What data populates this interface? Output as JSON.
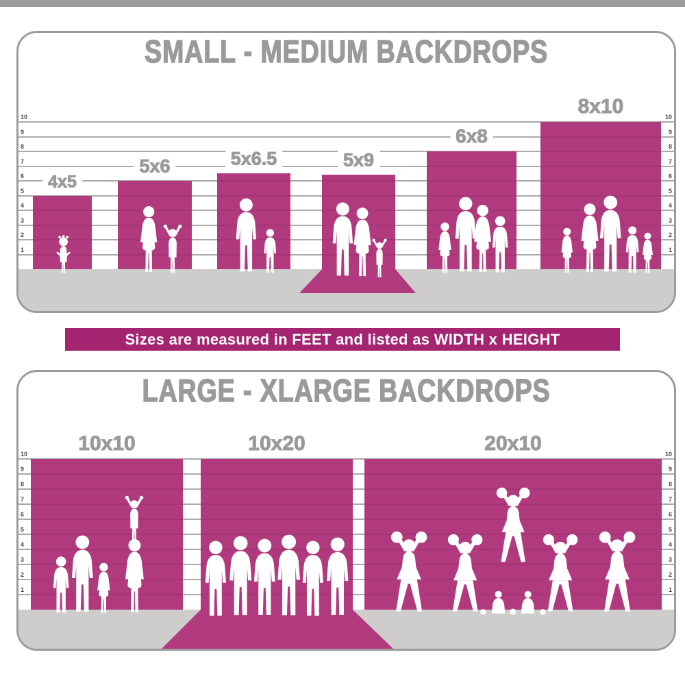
{
  "colors": {
    "backdrop_magenta": "#b13a7e",
    "banner_magenta": "#a42471",
    "title_gray": "#9a9a9a",
    "floor_gray": "#cecdcb",
    "ruler_line_gray": "#8d8d8d",
    "panel_border_gray": "#9b9b9b"
  },
  "top_chart": {
    "title": "SMALL - MEDIUM BACKDROPS",
    "ruler": {
      "unit": "feet",
      "ticks": [
        "10",
        "9",
        "8",
        "7",
        "6",
        "5",
        "4",
        "3",
        "2",
        "1"
      ]
    },
    "backdrops": [
      {
        "label": "4x5",
        "width_ft": 4,
        "height_ft": 5,
        "drawn_height_ft": 5,
        "floor_sweep": false,
        "figures": [
          {
            "type": "toddler",
            "height_ft": 2.7,
            "x": 0.52
          }
        ]
      },
      {
        "label": "5x6",
        "width_ft": 5,
        "height_ft": 6,
        "drawn_height_ft": 6,
        "floor_sweep": false,
        "figures": [
          {
            "type": "woman",
            "height_ft": 4.7,
            "x": 0.42
          },
          {
            "type": "child-arms-up",
            "height_ft": 3.5,
            "x": 0.74
          }
        ]
      },
      {
        "label": "5x6.5",
        "width_ft": 5,
        "height_ft": 6.5,
        "drawn_height_ft": 6.5,
        "floor_sweep": false,
        "figures": [
          {
            "type": "man",
            "height_ft": 5.2,
            "x": 0.4
          },
          {
            "type": "boy",
            "height_ft": 3.1,
            "x": 0.72
          }
        ]
      },
      {
        "label": "5x9",
        "width_ft": 5,
        "height_ft": 9,
        "drawn_height_ft": 6.4,
        "floor_sweep": true,
        "figures": [
          {
            "type": "man",
            "height_ft": 5.2,
            "x": 0.28
          },
          {
            "type": "woman",
            "height_ft": 4.9,
            "x": 0.55
          },
          {
            "type": "child-arms-up",
            "height_ft": 2.8,
            "x": 0.79
          }
        ]
      },
      {
        "label": "6x8",
        "width_ft": 6,
        "height_ft": 8,
        "drawn_height_ft": 8,
        "floor_sweep": false,
        "figures": [
          {
            "type": "girl",
            "height_ft": 3.6,
            "x": 0.2
          },
          {
            "type": "man",
            "height_ft": 5.3,
            "x": 0.43
          },
          {
            "type": "woman",
            "height_ft": 4.8,
            "x": 0.62
          },
          {
            "type": "boy",
            "height_ft": 4.0,
            "x": 0.82
          }
        ]
      },
      {
        "label": "8x10",
        "width_ft": 8,
        "height_ft": 10,
        "drawn_height_ft": 10,
        "floor_sweep": false,
        "figures": [
          {
            "type": "girl",
            "height_ft": 3.2,
            "x": 0.22
          },
          {
            "type": "woman",
            "height_ft": 4.9,
            "x": 0.41
          },
          {
            "type": "man",
            "height_ft": 5.4,
            "x": 0.58
          },
          {
            "type": "boy",
            "height_ft": 3.3,
            "x": 0.76
          },
          {
            "type": "girl",
            "height_ft": 2.9,
            "x": 0.89
          }
        ]
      }
    ]
  },
  "banner": {
    "text": "Sizes are measured in FEET and listed as WIDTH x HEIGHT"
  },
  "bottom_chart": {
    "title": "LARGE - XLARGE BACKDROPS",
    "ruler": {
      "unit": "feet",
      "ticks": [
        "10",
        "9",
        "8",
        "7",
        "6",
        "5",
        "4",
        "3",
        "2",
        "1"
      ]
    },
    "backdrops": [
      {
        "label": "10x10",
        "width_ft": 10,
        "height_ft": 10,
        "drawn_height_ft": 10,
        "floor_sweep": false,
        "figures": [
          {
            "type": "boy",
            "height_ft": 3.9,
            "x": 0.2
          },
          {
            "type": "man",
            "height_ft": 5.3,
            "x": 0.34
          },
          {
            "type": "girl",
            "height_ft": 3.5,
            "x": 0.48
          },
          {
            "type": "woman",
            "height_ft": 5.1,
            "x": 0.68
          },
          {
            "type": "child-arms-up",
            "height_ft": 3.4,
            "x": 0.68,
            "lift_ft": 4.6
          }
        ]
      },
      {
        "label": "10x20",
        "width_ft": 10,
        "height_ft": 20,
        "drawn_height_ft": 10,
        "floor_sweep": true,
        "figures": [
          {
            "type": "man",
            "height_ft": 5.2,
            "x": 0.1
          },
          {
            "type": "man",
            "height_ft": 5.5,
            "x": 0.26
          },
          {
            "type": "man",
            "height_ft": 5.3,
            "x": 0.42
          },
          {
            "type": "man",
            "height_ft": 5.6,
            "x": 0.58
          },
          {
            "type": "man",
            "height_ft": 5.2,
            "x": 0.74
          },
          {
            "type": "man",
            "height_ft": 5.4,
            "x": 0.9
          }
        ]
      },
      {
        "label": "20x10",
        "width_ft": 20,
        "height_ft": 10,
        "drawn_height_ft": 10,
        "floor_sweep": false,
        "figures": [
          {
            "type": "cheerleader",
            "height_ft": 5.6,
            "x": 0.15
          },
          {
            "type": "cheerleader",
            "height_ft": 5.4,
            "x": 0.34
          },
          {
            "type": "cheerleader",
            "height_ft": 5.2,
            "x": 0.5,
            "lift_ft": 3.3
          },
          {
            "type": "cheerleader",
            "height_ft": 5.4,
            "x": 0.66
          },
          {
            "type": "cheerleader",
            "height_ft": 5.6,
            "x": 0.85
          },
          {
            "type": "kneeling",
            "height_ft": 2.4,
            "x": 0.45
          },
          {
            "type": "kneeling",
            "height_ft": 2.4,
            "x": 0.55
          },
          {
            "type": "pom-pom",
            "height_ft": 1.0,
            "x": 0.4
          },
          {
            "type": "pom-pom",
            "height_ft": 1.1,
            "x": 0.5
          },
          {
            "type": "pom-pom",
            "height_ft": 1.0,
            "x": 0.6
          }
        ]
      }
    ]
  },
  "chart_data": [
    {
      "type": "bar",
      "title": "SMALL - MEDIUM BACKDROPS",
      "categories": [
        "4x5",
        "5x6",
        "5x6.5",
        "5x9",
        "6x8",
        "8x10"
      ],
      "series": [
        {
          "name": "width_ft",
          "values": [
            4,
            5,
            5,
            5,
            6,
            8
          ]
        },
        {
          "name": "height_ft",
          "values": [
            5,
            6,
            6.5,
            9,
            8,
            10
          ]
        }
      ],
      "xlabel": "",
      "ylabel": "feet",
      "ylim": [
        0,
        10
      ],
      "grid": true,
      "note": "5x9 drawn with a floor sweep; vertical portion ~6.4 ft"
    },
    {
      "type": "bar",
      "title": "LARGE - XLARGE BACKDROPS",
      "categories": [
        "10x10",
        "10x20",
        "20x10"
      ],
      "series": [
        {
          "name": "width_ft",
          "values": [
            10,
            10,
            20
          ]
        },
        {
          "name": "height_ft",
          "values": [
            10,
            20,
            10
          ]
        }
      ],
      "xlabel": "",
      "ylabel": "feet",
      "ylim": [
        0,
        10
      ],
      "grid": true,
      "note": "10x20 drawn with a floor sweep"
    }
  ]
}
